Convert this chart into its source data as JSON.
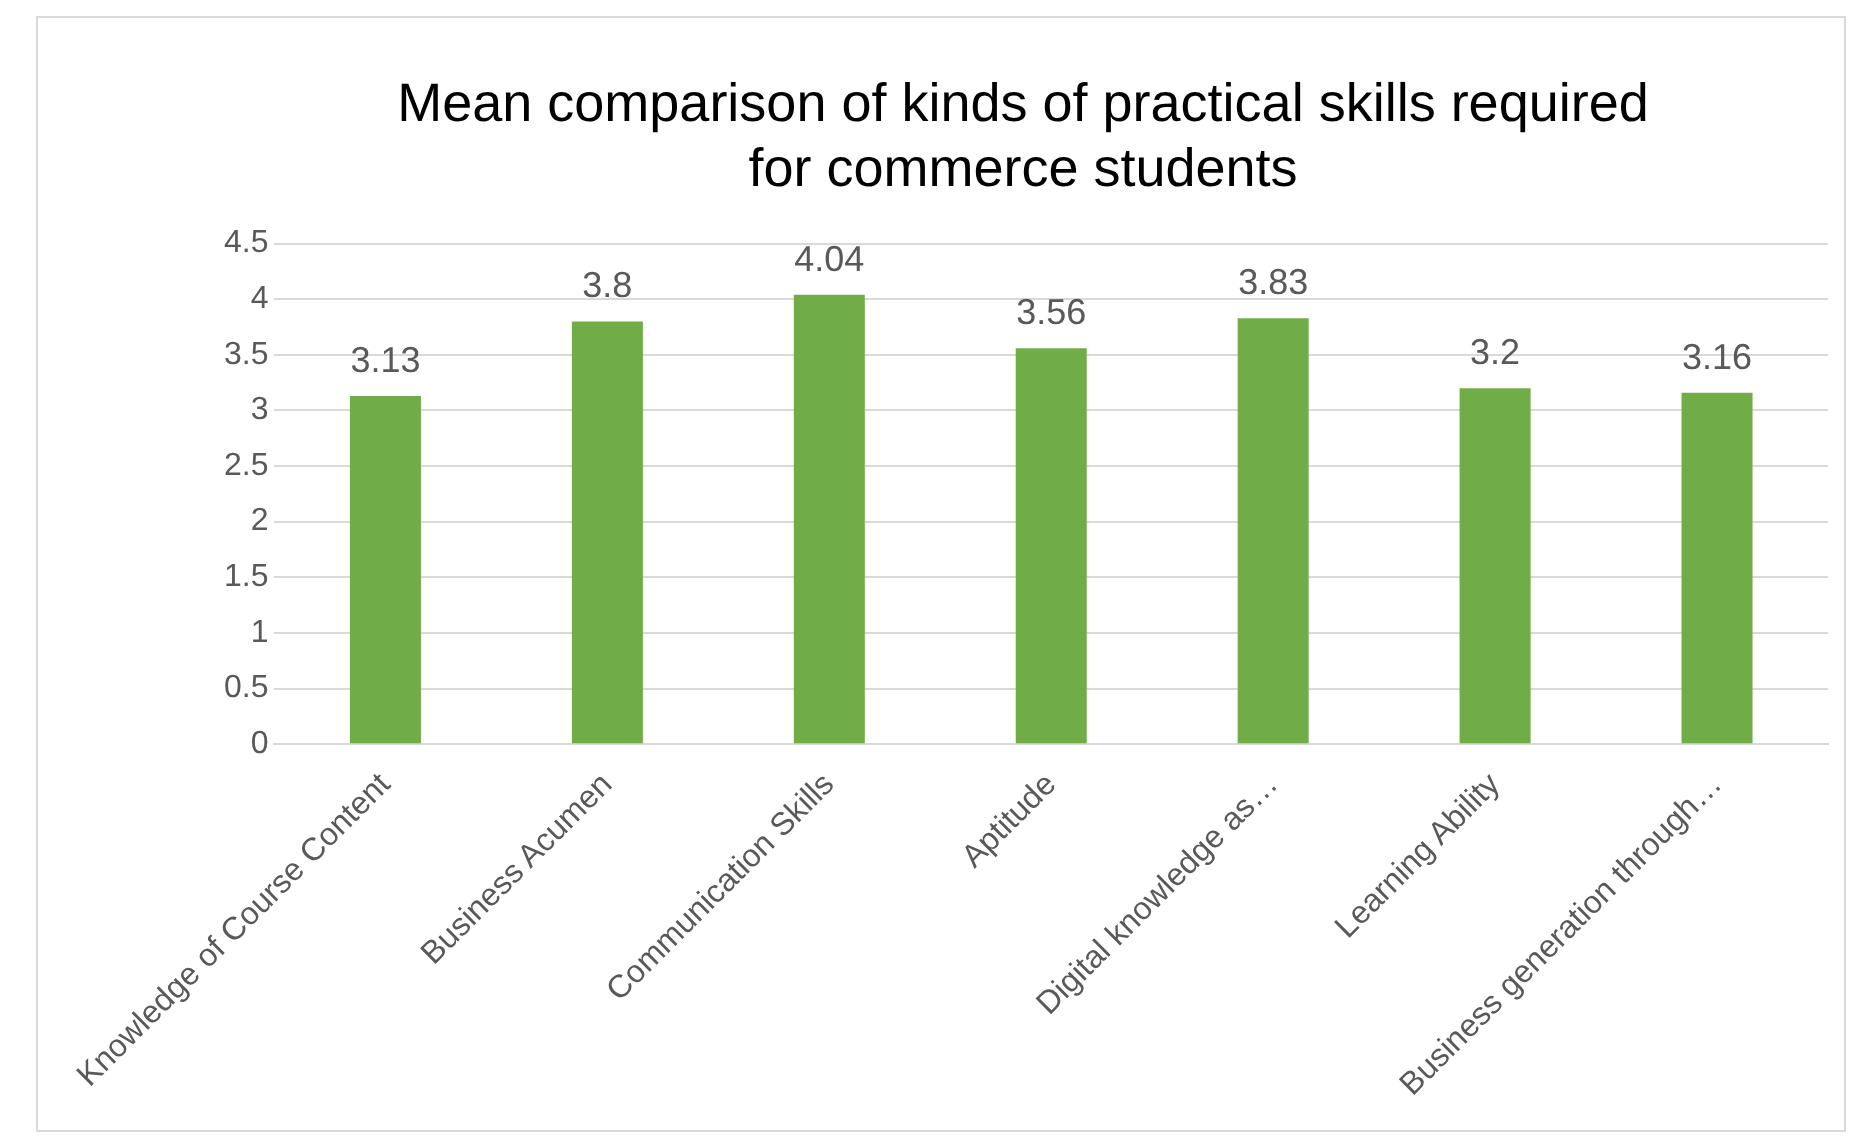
{
  "chart_data": {
    "type": "bar",
    "title": "Mean comparison of kinds of practical skills required for commerce students",
    "categories": [
      "Knowledge of Course Content",
      "Business Acumen",
      "Communication Skills",
      "Aptitude",
      "Digital knowledge as…",
      "Learning Ability",
      "Business generation through…"
    ],
    "values": [
      3.13,
      3.8,
      4.04,
      3.56,
      3.83,
      3.2,
      3.16
    ],
    "color": "#70ad47",
    "ylim": [
      0,
      4.5
    ],
    "yticks": [
      0,
      0.5,
      1,
      1.5,
      2,
      2.5,
      3,
      3.5,
      4,
      4.5
    ],
    "grid": "y",
    "legend": false,
    "data_labels": true
  }
}
